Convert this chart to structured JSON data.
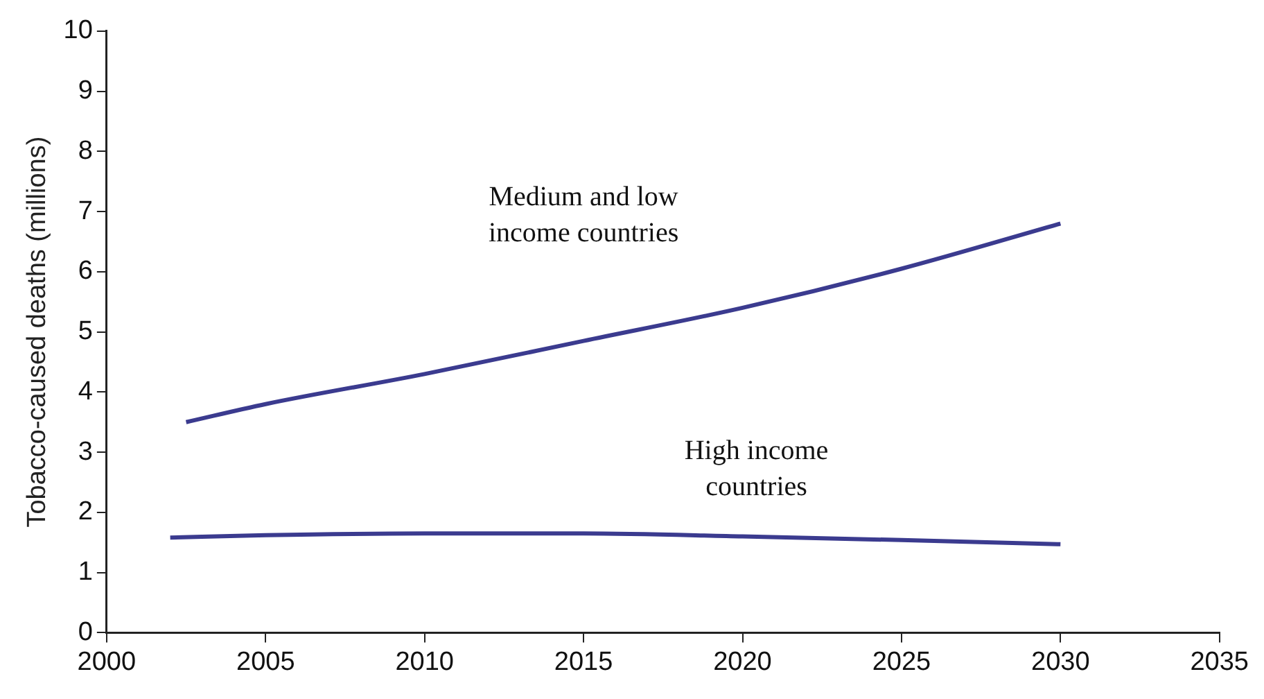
{
  "chart_data": {
    "type": "line",
    "ylabel": "Tobacco-caused deaths (millions)",
    "xlim": [
      2000,
      2035
    ],
    "xticks": [
      2000,
      2005,
      2010,
      2015,
      2020,
      2025,
      2030,
      2035
    ],
    "ylim": [
      0,
      10
    ],
    "yticks": [
      0,
      1,
      2,
      3,
      4,
      5,
      6,
      7,
      8,
      9,
      10
    ],
    "grid": false,
    "legend": false,
    "marker": "none",
    "line_style": "solid",
    "series": [
      {
        "name": "Medium and low income countries",
        "color": "#3b3b8f",
        "x": [
          2002.5,
          2005,
          2010,
          2015,
          2020,
          2025,
          2030
        ],
        "values": [
          3.5,
          3.8,
          4.3,
          4.85,
          5.4,
          6.05,
          6.8
        ]
      },
      {
        "name": "High income countries",
        "color": "#3b3b8f",
        "x": [
          2002,
          2005,
          2010,
          2015,
          2020,
          2025,
          2030
        ],
        "values": [
          1.58,
          1.62,
          1.65,
          1.65,
          1.6,
          1.54,
          1.47
        ]
      }
    ]
  }
}
